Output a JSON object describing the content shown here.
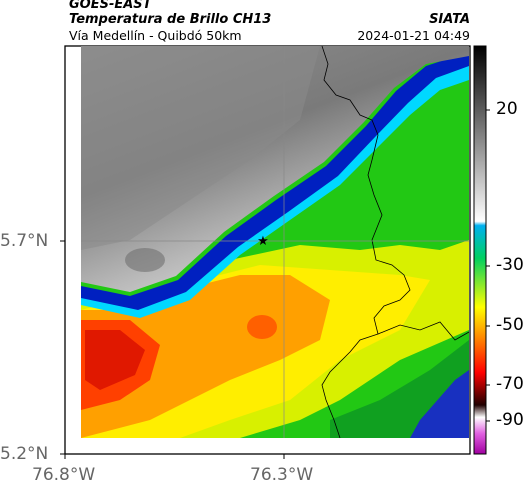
{
  "header": {
    "satellite": "GOES-EAST",
    "product": "Temperatura de Brillo CH13",
    "region": "Vía Medellín - Quibdó 50km",
    "agency": "SIATA",
    "datetime": "2024-01-21 04:49"
  },
  "map": {
    "lat_ticks": [
      "5.7°N",
      "5.2°N"
    ],
    "lon_ticks": [
      "76.8°W",
      "76.3°W"
    ],
    "marker": "star-marker"
  },
  "colorbar": {
    "ticks": [
      "20",
      "-30",
      "-50",
      "-70",
      "-90"
    ],
    "colors": [
      "#000000",
      "#ffffff",
      "#00a0e0",
      "#00c800",
      "#ffff00",
      "#ff0000",
      "#000000",
      "#ff00ff"
    ]
  }
}
